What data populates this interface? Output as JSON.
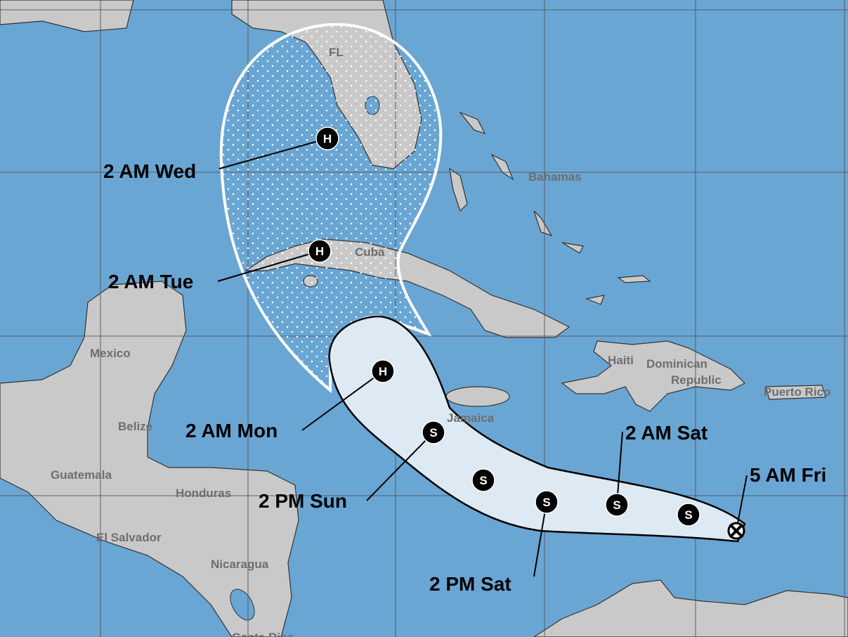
{
  "map": {
    "colors": {
      "ocean": "#6aa6d4",
      "land": "#c9c9c9",
      "cone_days_1_3": "#dde9f3",
      "cone_outline_4_5": "#ffffff",
      "marker": "#000000"
    },
    "places": {
      "fl": "FL",
      "bahamas": "Bahamas",
      "cuba": "Cuba",
      "mexico": "Mexico",
      "belize": "Belize",
      "guatemala": "Guatemala",
      "honduras": "Honduras",
      "el_salvador": "El Salvador",
      "nicaragua": "Nicaragua",
      "costa_rica": "Costa Rica",
      "jamaica": "Jamaica",
      "haiti": "Haiti",
      "dominican_1": "Dominican",
      "dominican_2": "Republic",
      "puerto_rico": "Puerto Rico"
    },
    "forecast_points": [
      {
        "time": "5 AM Fri",
        "symbol": "X",
        "kind": "current"
      },
      {
        "time": "",
        "symbol": "S",
        "kind": "storm"
      },
      {
        "time": "2 AM Sat",
        "symbol": "S",
        "kind": "storm"
      },
      {
        "time": "2 PM Sat",
        "symbol": "S",
        "kind": "storm"
      },
      {
        "time": "",
        "symbol": "S",
        "kind": "storm"
      },
      {
        "time": "2 PM Sun",
        "symbol": "S",
        "kind": "storm"
      },
      {
        "time": "2 AM Mon",
        "symbol": "H",
        "kind": "hurricane"
      },
      {
        "time": "2 AM Tue",
        "symbol": "H",
        "kind": "hurricane"
      },
      {
        "time": "2 AM Wed",
        "symbol": "H",
        "kind": "hurricane"
      }
    ]
  }
}
